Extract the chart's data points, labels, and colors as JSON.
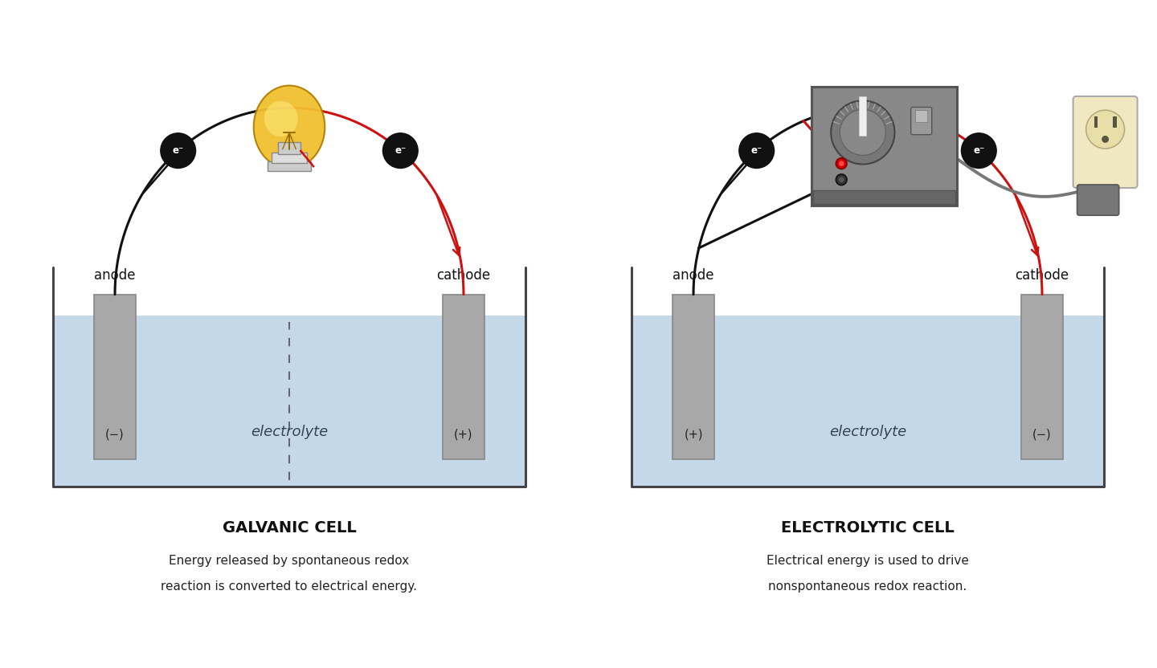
{
  "bg_color": "#ffffff",
  "title_fontsize": 14,
  "label_fontsize": 12,
  "desc_fontsize": 12,
  "electrode_color": "#a8a8a8",
  "electrode_edge": "#888888",
  "water_color": "#c5d8ea",
  "tank_edge": "#444444",
  "electron_ball_color": "#111111",
  "electron_text_color": "#ffffff",
  "arrow_color": "#111111",
  "red_wire_color": "#cc1111",
  "black_wire_color": "#111111",
  "gray_wire_color": "#777777",
  "galvanic_title": "GALVANIC CELL",
  "electrolytic_title": "ELECTROLYTIC CELL",
  "galvanic_desc1": "Energy released by spontaneous redox",
  "galvanic_desc2": "reaction is converted to electrical energy.",
  "electrolytic_desc1": "Electrical energy is used to drive",
  "electrolytic_desc2": "nonspontaneous redox reaction.",
  "anode_label": "anode",
  "cathode_label": "cathode",
  "electrolyte_label": "electrolyte",
  "galvanic_anode_sign": "(−)",
  "galvanic_cathode_sign": "(+)",
  "electrolytic_anode_sign": "(+)",
  "electrolytic_cathode_sign": "(−)",
  "dashed_line_color": "#666677",
  "bulb_color": "#f0c030",
  "bulb_highlight": "#ffe87a",
  "socket_color": "#cccccc",
  "socket_edge": "#888888",
  "box_color": "#888888",
  "box_edge": "#555555",
  "outlet_color": "#f0e8c0",
  "outlet_edge": "#aaaaaa"
}
